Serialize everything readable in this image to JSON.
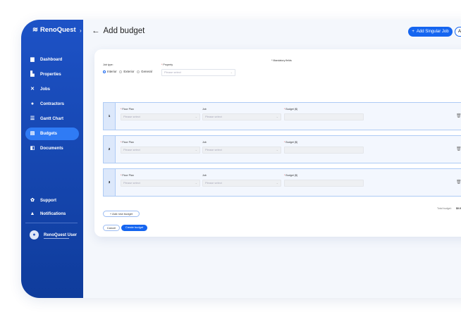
{
  "app": {
    "name": "RenoQuest"
  },
  "sidebar": {
    "items": [
      {
        "label": "Dashboard",
        "icon": "bar-chart-icon"
      },
      {
        "label": "Properties",
        "icon": "building-icon"
      },
      {
        "label": "Jobs",
        "icon": "tools-icon"
      },
      {
        "label": "Contractors",
        "icon": "person-icon"
      },
      {
        "label": "Gantt Chart",
        "icon": "gantt-icon"
      },
      {
        "label": "Budgets",
        "icon": "budget-icon",
        "active": true
      },
      {
        "label": "Documents",
        "icon": "documents-icon"
      }
    ],
    "bottom": [
      {
        "label": "Support",
        "icon": "lifebuoy-icon"
      },
      {
        "label": "Notifications",
        "icon": "bell-icon"
      }
    ],
    "user": "RenoQuest User"
  },
  "header": {
    "title": "Add budget",
    "add_singular_job": "Add Singular Job",
    "second_button": "A"
  },
  "form": {
    "mandatory": "* Mandatory fields",
    "job_type_label": "Job type:",
    "job_types": [
      "Interior",
      "Exterior",
      "General"
    ],
    "selected_job_type": "Interior",
    "property_label": "Property",
    "placeholder": "Please select",
    "row_labels": {
      "floor_plan": "Floor Plan",
      "job": "Job",
      "budget": "Budget ($)"
    },
    "rows": [
      {
        "num": "1"
      },
      {
        "num": "2"
      },
      {
        "num": "3"
      }
    ],
    "add_new_budget": "Add new budget",
    "total_label": "Total budget:",
    "total_value": "$0.0",
    "cancel": "Cancel",
    "create": "Create budget"
  },
  "colors": {
    "accent": "#1565f0",
    "sidebar": "#1d52c6"
  }
}
